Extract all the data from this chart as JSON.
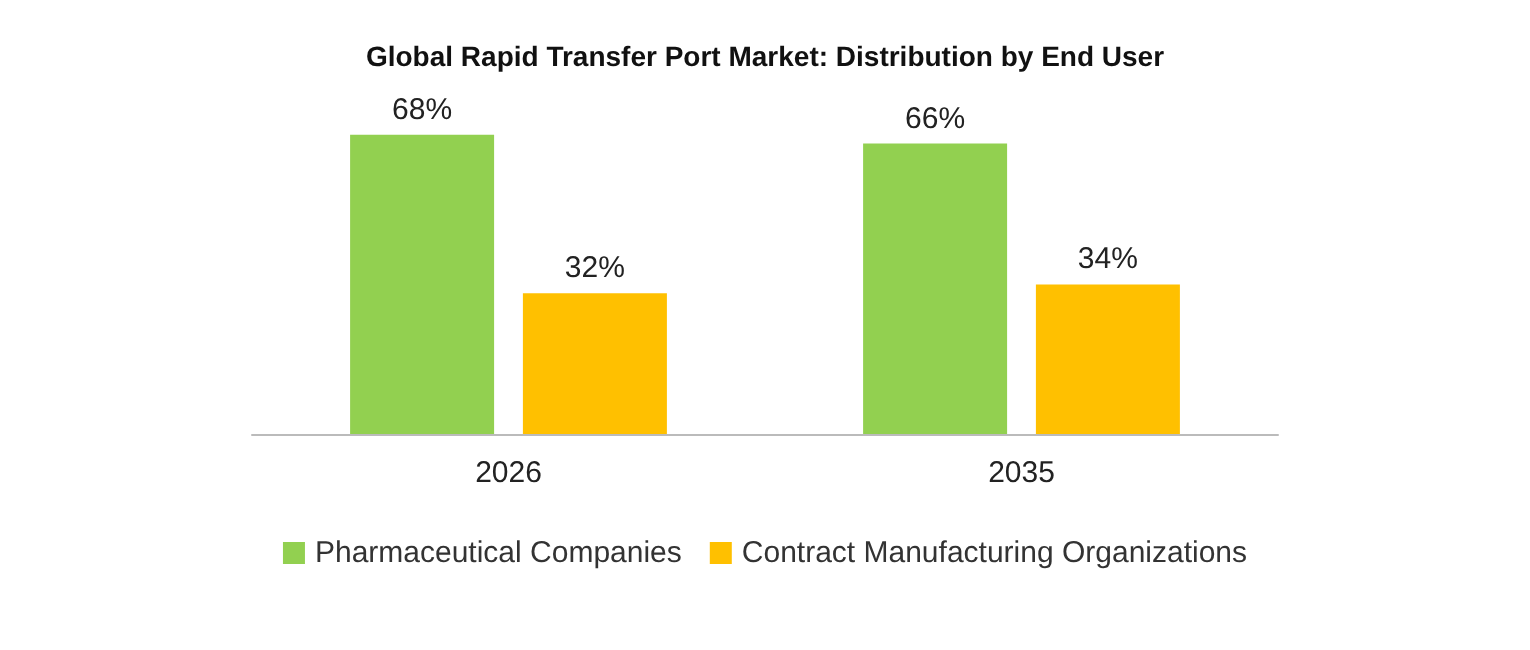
{
  "chart_data": {
    "type": "bar",
    "title": "Global Rapid Transfer Port Market: Distribution by End User",
    "categories": [
      "2026",
      "2035"
    ],
    "series": [
      {
        "name": "Pharmaceutical Companies",
        "color": "#92d050",
        "values": [
          68,
          66
        ],
        "value_labels": [
          "68%",
          "66%"
        ]
      },
      {
        "name": "Contract Manufacturing Organizations",
        "color": "#ffc000",
        "values": [
          32,
          34
        ],
        "value_labels": [
          "32%",
          "34%"
        ]
      }
    ],
    "legend": "bottom"
  }
}
